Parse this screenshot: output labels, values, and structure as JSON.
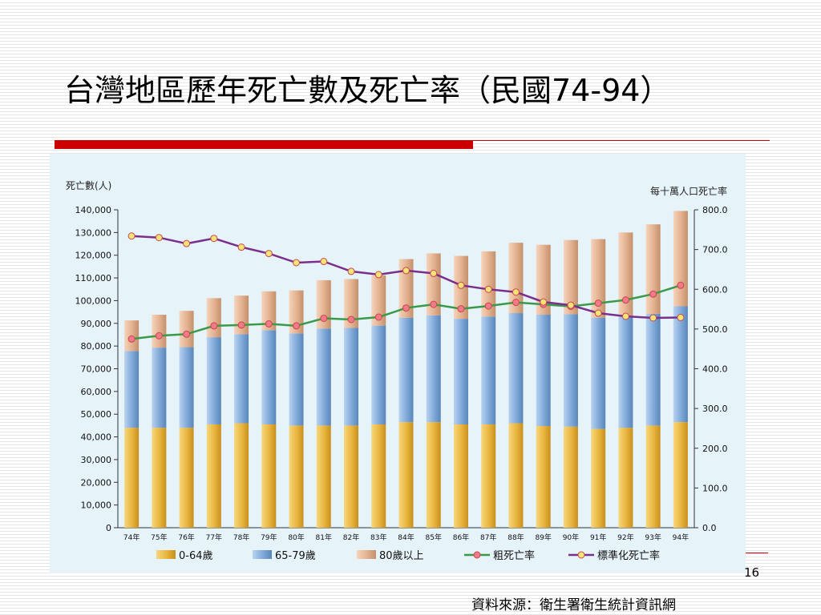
{
  "slide": {
    "title": "台灣地區歷年死亡數及死亡率（民國74-94）",
    "page_number": "16",
    "source": "資料來源：衛生署衛生統計資訊網"
  },
  "colors": {
    "age_0_64": "#e8b43c",
    "age_65_79": "#7ea8d8",
    "age_80_plus": "#e2b08e",
    "crude_line": "#3a9a4a",
    "std_line": "#7a2f8c",
    "crude_marker": "#f07a8a",
    "std_marker": "#f5e37a",
    "chart_bg": "#e6f3f9"
  },
  "chart_data": {
    "type": "bar",
    "stacked": true,
    "ylabel_left": "死亡數(人)",
    "ylabel_right": "每十萬人口死亡率",
    "ylim_left": [
      0,
      140000
    ],
    "ylim_right": [
      0,
      800
    ],
    "yticks_left": [
      "0",
      "10,000",
      "20,000",
      "30,000",
      "40,000",
      "50,000",
      "60,000",
      "70,000",
      "80,000",
      "90,000",
      "100,000",
      "110,000",
      "120,000",
      "130,000",
      "140,000"
    ],
    "yticks_right": [
      "0.0",
      "100.0",
      "200.0",
      "300.0",
      "400.0",
      "500.0",
      "600.0",
      "700.0",
      "800.0"
    ],
    "categories": [
      "74年",
      "75年",
      "76年",
      "77年",
      "78年",
      "79年",
      "80年",
      "81年",
      "82年",
      "83年",
      "84年",
      "85年",
      "86年",
      "87年",
      "88年",
      "89年",
      "90年",
      "91年",
      "92年",
      "93年",
      "94年"
    ],
    "series": [
      {
        "name": "0-64歲",
        "axis": "left",
        "kind": "bar",
        "values": [
          44000,
          44000,
          44000,
          45500,
          46000,
          45500,
          45000,
          45000,
          45000,
          45500,
          46500,
          46500,
          45500,
          45500,
          46000,
          44800,
          44500,
          43500,
          44000,
          45000,
          46500
        ]
      },
      {
        "name": "65-79歲",
        "axis": "left",
        "kind": "bar",
        "values": [
          33800,
          35300,
          35500,
          38400,
          39200,
          41500,
          40500,
          42700,
          43000,
          43500,
          46000,
          47000,
          46500,
          47500,
          48500,
          49000,
          49500,
          49000,
          49000,
          49200,
          51000
        ]
      },
      {
        "name": "80歲以上",
        "axis": "left",
        "kind": "bar",
        "values": [
          13500,
          14500,
          16000,
          17200,
          17000,
          17100,
          19000,
          21300,
          21500,
          22100,
          25800,
          27300,
          27700,
          28700,
          31000,
          30800,
          32700,
          34600,
          37000,
          39400,
          42000
        ]
      },
      {
        "name": "粗死亡率",
        "axis": "right",
        "kind": "line",
        "values": [
          475,
          483,
          487,
          508,
          510,
          513,
          508,
          527,
          524,
          530,
          553,
          562,
          551,
          558,
          567,
          562,
          557,
          565,
          573,
          588,
          610
        ]
      },
      {
        "name": "標準化死亡率",
        "axis": "right",
        "kind": "line",
        "values": [
          734,
          730,
          715,
          728,
          706,
          690,
          667,
          670,
          645,
          637,
          647,
          640,
          610,
          600,
          593,
          568,
          560,
          540,
          532,
          528,
          529
        ]
      }
    ]
  }
}
